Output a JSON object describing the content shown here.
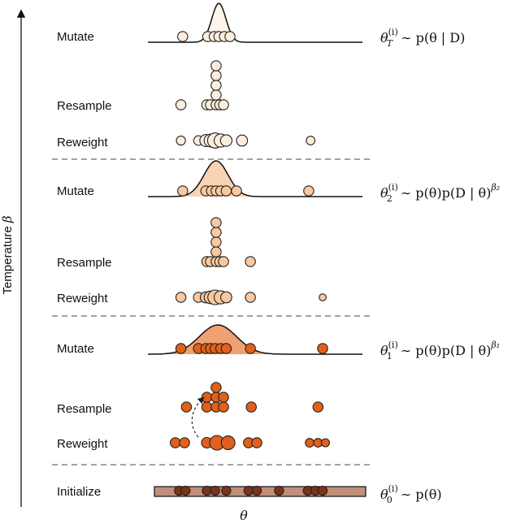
{
  "axes": {
    "y_label": "Temperature",
    "y_label_symbol": "β",
    "x_label": "θ"
  },
  "palette": {
    "level0": "#fbeedd",
    "level1": "#f8c8a0",
    "level2": "#e2601b",
    "density0": "#fdf4ec",
    "density1": "#f9d3b2",
    "density2": "#efa173",
    "prior_box": "#c08f7b",
    "init_dot": "#7f3316",
    "stroke": "#222222"
  },
  "rows": [
    {
      "label": "Mutate",
      "kind": "mutate",
      "level": 0,
      "density": {
        "mu": 0.225,
        "sigma": 0.038,
        "height": 48
      },
      "particles": [
        [
          0.03,
          1
        ],
        [
          0.165,
          1
        ],
        [
          0.2,
          1
        ],
        [
          0.225,
          1
        ],
        [
          0.255,
          1
        ],
        [
          0.285,
          1
        ]
      ]
    },
    {
      "label": "Resample",
      "kind": "resample",
      "level": 0,
      "columns": [
        [
          0.02,
          1
        ],
        [
          0.16,
          1
        ],
        [
          0.18,
          1
        ],
        [
          0.21,
          5
        ],
        [
          0.23,
          1
        ],
        [
          0.25,
          1
        ]
      ]
    },
    {
      "label": "Reweight",
      "kind": "reweight",
      "level": 0,
      "particles": [
        [
          0.02,
          0.9
        ],
        [
          0.115,
          0.95
        ],
        [
          0.155,
          1.2
        ],
        [
          0.18,
          1.25
        ],
        [
          0.205,
          1.5
        ],
        [
          0.235,
          1.3
        ],
        [
          0.265,
          1.15
        ],
        [
          0.35,
          1.1
        ],
        [
          0.72,
          0.85
        ]
      ]
    },
    {
      "label": "Mutate",
      "kind": "mutate",
      "level": 1,
      "density": {
        "mu": 0.21,
        "sigma": 0.065,
        "height": 44
      },
      "particles": [
        [
          0.03,
          1
        ],
        [
          0.155,
          1
        ],
        [
          0.185,
          1
        ],
        [
          0.21,
          1
        ],
        [
          0.235,
          1
        ],
        [
          0.265,
          1
        ],
        [
          0.32,
          1
        ],
        [
          0.71,
          1
        ]
      ]
    },
    {
      "label": "Resample",
      "kind": "resample",
      "level": 1,
      "columns": [
        [
          0.16,
          1
        ],
        [
          0.18,
          1
        ],
        [
          0.21,
          5
        ],
        [
          0.23,
          1
        ],
        [
          0.25,
          1
        ],
        [
          0.395,
          1
        ]
      ]
    },
    {
      "label": "Reweight",
      "kind": "reweight",
      "level": 1,
      "particles": [
        [
          0.02,
          1
        ],
        [
          0.115,
          1
        ],
        [
          0.155,
          1.1
        ],
        [
          0.18,
          1.25
        ],
        [
          0.205,
          1.45
        ],
        [
          0.235,
          1.3
        ],
        [
          0.265,
          1.1
        ],
        [
          0.395,
          1
        ],
        [
          0.785,
          0.7
        ]
      ]
    },
    {
      "label": "Mutate",
      "kind": "mutate",
      "level": 2,
      "density": {
        "mu": 0.22,
        "sigma": 0.1,
        "height": 36
      },
      "particles": [
        [
          0.02,
          1
        ],
        [
          0.115,
          1
        ],
        [
          0.155,
          1
        ],
        [
          0.18,
          1
        ],
        [
          0.205,
          1
        ],
        [
          0.235,
          1
        ],
        [
          0.265,
          1
        ],
        [
          0.395,
          1
        ],
        [
          0.785,
          1
        ]
      ]
    },
    {
      "label": "Resample",
      "kind": "resample",
      "level": 2,
      "columns": [
        [
          0.05,
          1
        ],
        [
          0.16,
          2
        ],
        [
          0.21,
          3
        ],
        [
          0.25,
          2
        ],
        [
          0.4,
          1
        ],
        [
          0.76,
          1
        ]
      ],
      "arrow": true
    },
    {
      "label": "Reweight",
      "kind": "reweight",
      "level": 2,
      "particles": [
        [
          -0.01,
          1.0
        ],
        [
          0.04,
          1.0
        ],
        [
          0.16,
          1.05
        ],
        [
          0.215,
          1.45
        ],
        [
          0.275,
          1.35
        ],
        [
          0.385,
          1.0
        ],
        [
          0.43,
          1.0
        ],
        [
          0.715,
          0.85
        ],
        [
          0.76,
          0.85
        ],
        [
          0.8,
          0.8
        ]
      ]
    },
    {
      "label": "Initialize",
      "kind": "initialize",
      "level": 3,
      "particles": [
        [
          0.01,
          1
        ],
        [
          0.045,
          1
        ],
        [
          0.16,
          1
        ],
        [
          0.205,
          1
        ],
        [
          0.265,
          1
        ],
        [
          0.385,
          1
        ],
        [
          0.43,
          1
        ],
        [
          0.55,
          1
        ],
        [
          0.705,
          1
        ],
        [
          0.745,
          1
        ],
        [
          0.785,
          1
        ]
      ]
    }
  ],
  "equations": [
    {
      "id": "eq-T",
      "sup": "(i)",
      "sub": "T",
      "rhs": "∼ p(θ | D)",
      "exp": ""
    },
    {
      "id": "eq-2",
      "sup": "(i)",
      "sub": "2",
      "rhs": "∼ p(θ)p(D | θ)",
      "exp": "β₂"
    },
    {
      "id": "eq-1",
      "sup": "(i)",
      "sub": "1",
      "rhs": "∼ p(θ)p(D | θ)",
      "exp": "β₁"
    },
    {
      "id": "eq-0",
      "sup": "(i)",
      "sub": "0",
      "rhs": "∼ p(θ)",
      "exp": ""
    }
  ],
  "equation_symbol": "θ"
}
